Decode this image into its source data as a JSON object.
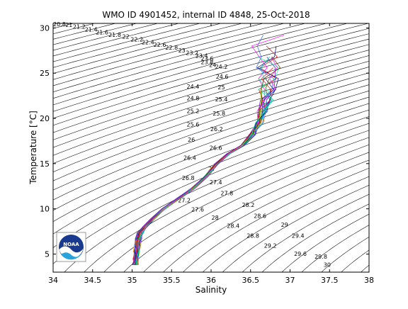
{
  "chart_data": {
    "type": "scatter",
    "title": "WMO ID 4901452, internal ID 4848, 25-Oct-2018",
    "xlabel": "Salinity",
    "ylabel": "Temperature [°C]",
    "xlim": [
      34,
      38
    ],
    "ylim": [
      3,
      30.5
    ],
    "x_ticks": [
      34,
      34.5,
      35,
      35.5,
      36,
      36.5,
      37,
      37.5,
      38
    ],
    "x_tick_labels": [
      "34",
      "34.5",
      "35",
      "35.5",
      "36",
      "36.5",
      "37",
      "37.5",
      "38"
    ],
    "y_ticks": [
      5,
      10,
      15,
      20,
      25,
      30
    ],
    "y_tick_labels": [
      "5",
      "10",
      "15",
      "20",
      "25",
      "30"
    ],
    "grid": false,
    "density_contours": {
      "step": 0.2,
      "min": 20.8,
      "max": 30.0,
      "labels": [
        {
          "sigma": "20.8",
          "s": 34.08,
          "t": 30.2
        },
        {
          "sigma": "21",
          "s": 34.2,
          "t": 30.1
        },
        {
          "sigma": "21.2",
          "s": 34.33,
          "t": 29.9
        },
        {
          "sigma": "21.4",
          "s": 34.48,
          "t": 29.6
        },
        {
          "sigma": "21.6",
          "s": 34.62,
          "t": 29.3
        },
        {
          "sigma": "21.8",
          "s": 34.78,
          "t": 29.0
        },
        {
          "sigma": "22",
          "s": 34.92,
          "t": 28.8
        },
        {
          "sigma": "22.2",
          "s": 35.06,
          "t": 28.5
        },
        {
          "sigma": "22.4",
          "s": 35.2,
          "t": 28.2
        },
        {
          "sigma": "22.6",
          "s": 35.35,
          "t": 27.9
        },
        {
          "sigma": "22.8",
          "s": 35.5,
          "t": 27.6
        },
        {
          "sigma": "23",
          "s": 35.63,
          "t": 27.3
        },
        {
          "sigma": "23.2",
          "s": 35.76,
          "t": 27.0
        },
        {
          "sigma": "23.4",
          "s": 35.88,
          "t": 26.7
        },
        {
          "sigma": "23.6",
          "s": 35.95,
          "t": 26.4
        },
        {
          "sigma": "23.8",
          "s": 35.95,
          "t": 26.0
        },
        {
          "sigma": "24",
          "s": 36.02,
          "t": 25.7
        },
        {
          "sigma": "24.2",
          "s": 36.13,
          "t": 25.5
        },
        {
          "sigma": "24.4",
          "s": 35.77,
          "t": 23.3
        },
        {
          "sigma": "24.6",
          "s": 36.14,
          "t": 24.4
        },
        {
          "sigma": "24.8",
          "s": 35.77,
          "t": 22.0
        },
        {
          "sigma": "25",
          "s": 36.13,
          "t": 23.2
        },
        {
          "sigma": "25.2",
          "s": 35.77,
          "t": 20.6
        },
        {
          "sigma": "25.4",
          "s": 36.13,
          "t": 21.9
        },
        {
          "sigma": "25.6",
          "s": 35.77,
          "t": 19.1
        },
        {
          "sigma": "25.8",
          "s": 36.1,
          "t": 20.3
        },
        {
          "sigma": "26",
          "s": 35.75,
          "t": 17.4
        },
        {
          "sigma": "26.2",
          "s": 36.07,
          "t": 18.6
        },
        {
          "sigma": "26.4",
          "s": 35.73,
          "t": 15.4
        },
        {
          "sigma": "26.6",
          "s": 36.06,
          "t": 16.5
        },
        {
          "sigma": "26.8",
          "s": 35.71,
          "t": 13.2
        },
        {
          "sigma": "27",
          "s": 36.01,
          "t": 14.2
        },
        {
          "sigma": "27.2",
          "s": 35.66,
          "t": 10.7
        },
        {
          "sigma": "27.4",
          "s": 36.06,
          "t": 12.7
        },
        {
          "sigma": "27.6",
          "s": 35.83,
          "t": 9.7
        },
        {
          "sigma": "27.8",
          "s": 36.2,
          "t": 11.5
        },
        {
          "sigma": "28",
          "s": 36.05,
          "t": 8.8
        },
        {
          "sigma": "28.2",
          "s": 36.47,
          "t": 10.2
        },
        {
          "sigma": "28.4",
          "s": 36.28,
          "t": 7.9
        },
        {
          "sigma": "28.6",
          "s": 36.62,
          "t": 9.0
        },
        {
          "sigma": "28.8",
          "s": 36.53,
          "t": 6.8
        },
        {
          "sigma": "29",
          "s": 36.93,
          "t": 8.0
        },
        {
          "sigma": "29.2",
          "s": 36.75,
          "t": 5.7
        },
        {
          "sigma": "29.4",
          "s": 37.1,
          "t": 6.8
        },
        {
          "sigma": "29.6",
          "s": 37.13,
          "t": 4.8
        },
        {
          "sigma": "29.8",
          "s": 37.39,
          "t": 4.5
        },
        {
          "sigma": "30",
          "s": 37.47,
          "t": 3.6
        }
      ]
    },
    "series": [
      {
        "values": [
          [
            35.04,
            3.8
          ],
          [
            35.05,
            4.5
          ],
          [
            35.06,
            5.3
          ],
          [
            35.07,
            6.0
          ],
          [
            35.08,
            6.7
          ],
          [
            35.1,
            7.3
          ],
          [
            35.16,
            8.0
          ],
          [
            35.26,
            8.9
          ],
          [
            35.4,
            10.0
          ],
          [
            35.6,
            11.2
          ],
          [
            35.78,
            12.3
          ],
          [
            35.94,
            13.6
          ],
          [
            36.06,
            14.9
          ],
          [
            36.22,
            16.1
          ],
          [
            36.4,
            17.0
          ],
          [
            36.52,
            18.2
          ],
          [
            36.6,
            19.5
          ],
          [
            36.66,
            20.8
          ],
          [
            36.7,
            22.0
          ],
          [
            36.72,
            23.2
          ],
          [
            36.73,
            24.4
          ],
          [
            36.72,
            25.6
          ],
          [
            36.72,
            26.8
          ],
          [
            36.73,
            28.0
          ],
          [
            36.73,
            29.2
          ]
        ]
      }
    ]
  },
  "logo": {
    "text": "NOAA"
  }
}
